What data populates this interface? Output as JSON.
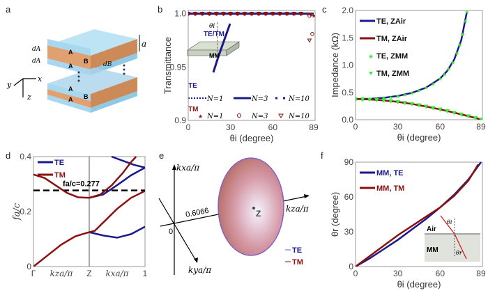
{
  "panels": {
    "a": "a",
    "b": "b",
    "c": "c",
    "d": "d",
    "e": "e",
    "f": "f"
  },
  "panel_a": {
    "layer_A": "A",
    "layer_B": "B",
    "dA": "dA",
    "dB": "dB",
    "a": "a",
    "x": "x",
    "y": "y",
    "z": "z"
  },
  "panel_b_inset": {
    "label": "TE/TM",
    "mm": "MM",
    "theta": "θi"
  },
  "panel_b_legend": {
    "te": "TE",
    "tm": "TM",
    "n1": "N=1",
    "n3": "N=3",
    "n10": "N=10"
  },
  "panel_e": {
    "kx": "kxa/π",
    "ky": "kya/π",
    "kz": "kza/π",
    "origin": "0",
    "value": "0.6066",
    "z": "Z",
    "te": "TE",
    "tm": "TM"
  },
  "panel_f_inset": {
    "air": "Air",
    "mm": "MM",
    "theta_i": "θi",
    "theta_r": "θr"
  },
  "colors": {
    "te": "#1a1a8c",
    "tm": "#8b1010",
    "mm_marker": "#33ee33",
    "slab_A": "#a8d8f0",
    "slab_B": "#e0a070"
  },
  "chart_data": [
    {
      "panel": "b",
      "type": "line",
      "xlabel": "θi (degree)",
      "ylabel": "Transmittance",
      "xlim": [
        0,
        90
      ],
      "ylim": [
        0.9,
        1.003
      ],
      "xticks": [
        "0",
        "30",
        "60",
        "89"
      ],
      "xtickvals": [
        0,
        30,
        60,
        89
      ],
      "yticks": [
        "0.9",
        "0.95",
        "1.0"
      ],
      "ytickvals": [
        0.9,
        0.95,
        1.0
      ],
      "series": [
        {
          "name": "TE N=1",
          "x": [
            0,
            89
          ],
          "y": [
            1,
            1
          ]
        },
        {
          "name": "TE N=3",
          "x": [
            0,
            89
          ],
          "y": [
            1,
            1
          ]
        },
        {
          "name": "TE N=10",
          "x": [
            0,
            89
          ],
          "y": [
            1,
            1
          ]
        },
        {
          "name": "TM N=1",
          "marker": "star",
          "x": [
            0,
            5,
            10,
            15,
            20,
            25,
            30,
            35,
            40,
            45,
            50,
            55,
            60,
            65,
            70,
            75,
            80,
            85,
            89
          ],
          "y": [
            1,
            1,
            1,
            1,
            1,
            1,
            1,
            1,
            1,
            1,
            1,
            1,
            1,
            1,
            1,
            1,
            1,
            1,
            0.998
          ]
        },
        {
          "name": "TM N=3",
          "marker": "circle",
          "x": [
            0,
            5,
            10,
            15,
            20,
            25,
            30,
            35,
            40,
            45,
            50,
            55,
            60,
            65,
            70,
            75,
            80,
            86,
            88
          ],
          "y": [
            1,
            1,
            1,
            1,
            1,
            1,
            1,
            1,
            1,
            1,
            1,
            1,
            1,
            1,
            1,
            1,
            1,
            0.998,
            0.981
          ]
        },
        {
          "name": "TM N=10",
          "marker": "triangle",
          "x": [
            0,
            5,
            10,
            15,
            20,
            25,
            30,
            35,
            40,
            45,
            50,
            55,
            60,
            65,
            70,
            75,
            80,
            86,
            87
          ],
          "y": [
            1,
            1,
            1,
            1,
            1,
            1,
            1,
            1,
            1,
            1,
            1,
            1,
            1,
            1,
            1,
            1,
            1,
            0.975,
            0.999
          ]
        }
      ]
    },
    {
      "panel": "c",
      "type": "line",
      "xlabel": "θi (degree)",
      "ylabel": "Impedance (kΩ)",
      "xlim": [
        0,
        90
      ],
      "ylim": [
        0,
        2.0
      ],
      "xticks": [
        "0",
        "30",
        "60",
        "89"
      ],
      "xtickvals": [
        0,
        30,
        60,
        89
      ],
      "yticks": [
        "0.0",
        "0.5",
        "1.0",
        "1.5",
        "2.0"
      ],
      "ytickvals": [
        0,
        0.5,
        1,
        1.5,
        2
      ],
      "series": [
        {
          "name": "TE, ZAir",
          "x": [
            0,
            10,
            20,
            30,
            40,
            50,
            60,
            65,
            70,
            75,
            79
          ],
          "y": [
            0.377,
            0.383,
            0.401,
            0.435,
            0.492,
            0.587,
            0.754,
            0.892,
            1.102,
            1.457,
            1.976
          ]
        },
        {
          "name": "TM, ZAir",
          "x": [
            0,
            10,
            20,
            30,
            40,
            50,
            60,
            70,
            80,
            85,
            89
          ],
          "y": [
            0.377,
            0.371,
            0.354,
            0.326,
            0.289,
            0.242,
            0.189,
            0.129,
            0.065,
            0.033,
            0.007
          ]
        },
        {
          "name": "TE, ZMM",
          "marker": "star",
          "x": [
            0,
            5,
            10,
            15,
            20,
            25,
            30,
            35,
            40,
            45,
            50,
            55,
            60,
            63,
            66,
            69,
            72,
            74,
            76,
            78,
            79
          ],
          "y": [
            0.377,
            0.378,
            0.383,
            0.39,
            0.401,
            0.416,
            0.435,
            0.46,
            0.492,
            0.533,
            0.587,
            0.657,
            0.754,
            0.83,
            0.927,
            1.052,
            1.22,
            1.368,
            1.558,
            1.81,
            1.976
          ]
        },
        {
          "name": "TM, ZMM",
          "marker": "triangle",
          "x": [
            0,
            5,
            10,
            15,
            20,
            25,
            30,
            35,
            40,
            45,
            50,
            55,
            60,
            65,
            70,
            75,
            80,
            85,
            89
          ],
          "y": [
            0.377,
            0.376,
            0.371,
            0.364,
            0.354,
            0.342,
            0.326,
            0.309,
            0.289,
            0.267,
            0.242,
            0.216,
            0.189,
            0.159,
            0.129,
            0.098,
            0.065,
            0.033,
            0.007
          ]
        }
      ]
    },
    {
      "panel": "d",
      "type": "line",
      "ylabel": "fa/c",
      "ylim": [
        0,
        0.4
      ],
      "yticks": [
        "0",
        "0.2",
        "0.4"
      ],
      "ytickvals": [
        0,
        0.2,
        0.4
      ],
      "xticks": [
        "Γ",
        "kza/π",
        "Z",
        "kxa/π",
        "1"
      ],
      "xtickvals": [
        0,
        0.5,
        1,
        1.5,
        2
      ],
      "xlim": [
        0,
        2
      ],
      "annotation": {
        "text": "fa/c=0.277",
        "y": 0.277
      },
      "series": [
        {
          "name": "TE",
          "x": [
            1,
            1.25,
            1.5,
            1.75,
            2
          ],
          "y": [
            0.125,
            0.113,
            0.105,
            0.118,
            0.145
          ]
        },
        {
          "name": "TE",
          "x": [
            1,
            1.25,
            1.5,
            1.75,
            2
          ],
          "y": [
            0.25,
            0.262,
            0.296,
            0.332,
            0.36
          ]
        },
        {
          "name": "TE",
          "x": [
            1.4,
            1.6,
            1.8,
            2
          ],
          "y": [
            0.4,
            0.385,
            0.37,
            0.36
          ]
        },
        {
          "name": "TM",
          "x": [
            0,
            0.25,
            0.5,
            0.75,
            1,
            1.1,
            1.25,
            1.5,
            1.75,
            2
          ],
          "y": [
            0,
            0.04,
            0.08,
            0.11,
            0.125,
            0.13,
            0.16,
            0.21,
            0.25,
            0.275
          ]
        },
        {
          "name": "TM",
          "x": [
            0,
            0.2,
            0.4,
            0.6,
            0.8,
            1,
            1.2,
            1.4,
            1.6,
            1.75,
            1.84
          ],
          "y": [
            0.335,
            0.322,
            0.295,
            0.268,
            0.252,
            0.25,
            0.262,
            0.295,
            0.34,
            0.38,
            0.4
          ]
        }
      ]
    },
    {
      "panel": "f",
      "type": "line",
      "xlabel": "θi (degree)",
      "ylabel": "θr (degree)",
      "xlim": [
        0,
        90
      ],
      "ylim": [
        0,
        90
      ],
      "xticks": [
        "0",
        "30",
        "60",
        "89"
      ],
      "xtickvals": [
        0,
        30,
        60,
        89
      ],
      "yticks": [
        "0",
        "30",
        "60",
        "90"
      ],
      "ytickvals": [
        0,
        30,
        60,
        90
      ],
      "series": [
        {
          "name": "MM, TE",
          "x": [
            0,
            10,
            20,
            30,
            40,
            50,
            60,
            70,
            80,
            89
          ],
          "y": [
            0,
            7,
            15,
            23,
            32,
            41,
            51,
            62,
            75,
            90
          ]
        },
        {
          "name": "MM, TM",
          "x": [
            0,
            10,
            20,
            30,
            40,
            50,
            60,
            70,
            80,
            87
          ],
          "y": [
            0,
            9,
            18,
            27,
            35,
            43,
            51,
            61,
            74,
            88
          ]
        }
      ]
    }
  ]
}
